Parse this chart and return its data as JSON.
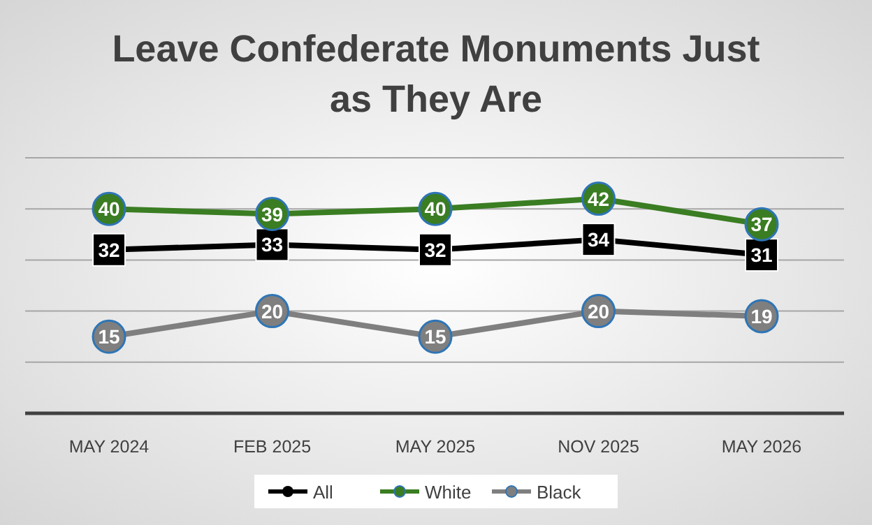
{
  "chart_data": {
    "type": "line",
    "title": "Leave Confederate Monuments Just as They Are",
    "categories": [
      "MAY 2024",
      "FEB 2025",
      "MAY 2025",
      "NOV 2025",
      "MAY 2026"
    ],
    "series": [
      {
        "name": "All",
        "color": "#000000",
        "marker": "square",
        "values": [
          32,
          33,
          32,
          34,
          31
        ]
      },
      {
        "name": "White",
        "color": "#3a7d22",
        "marker": "circle",
        "values": [
          40,
          39,
          40,
          42,
          37
        ]
      },
      {
        "name": "Black",
        "color": "#7f7f7f",
        "marker": "circle",
        "values": [
          15,
          20,
          15,
          20,
          19
        ]
      }
    ],
    "ylim": [
      0,
      50
    ],
    "yticks": [
      {
        "value": 0,
        "label": null
      },
      {
        "value": 10,
        "label": null
      },
      {
        "value": 20,
        "label": null
      },
      {
        "value": 30,
        "label": null
      },
      {
        "value": 40,
        "label": null
      },
      {
        "value": 50,
        "label": null
      }
    ],
    "tick_labels": "x",
    "grid": "y",
    "legend": "bottom",
    "data_labels": true,
    "line_style": "solid"
  }
}
